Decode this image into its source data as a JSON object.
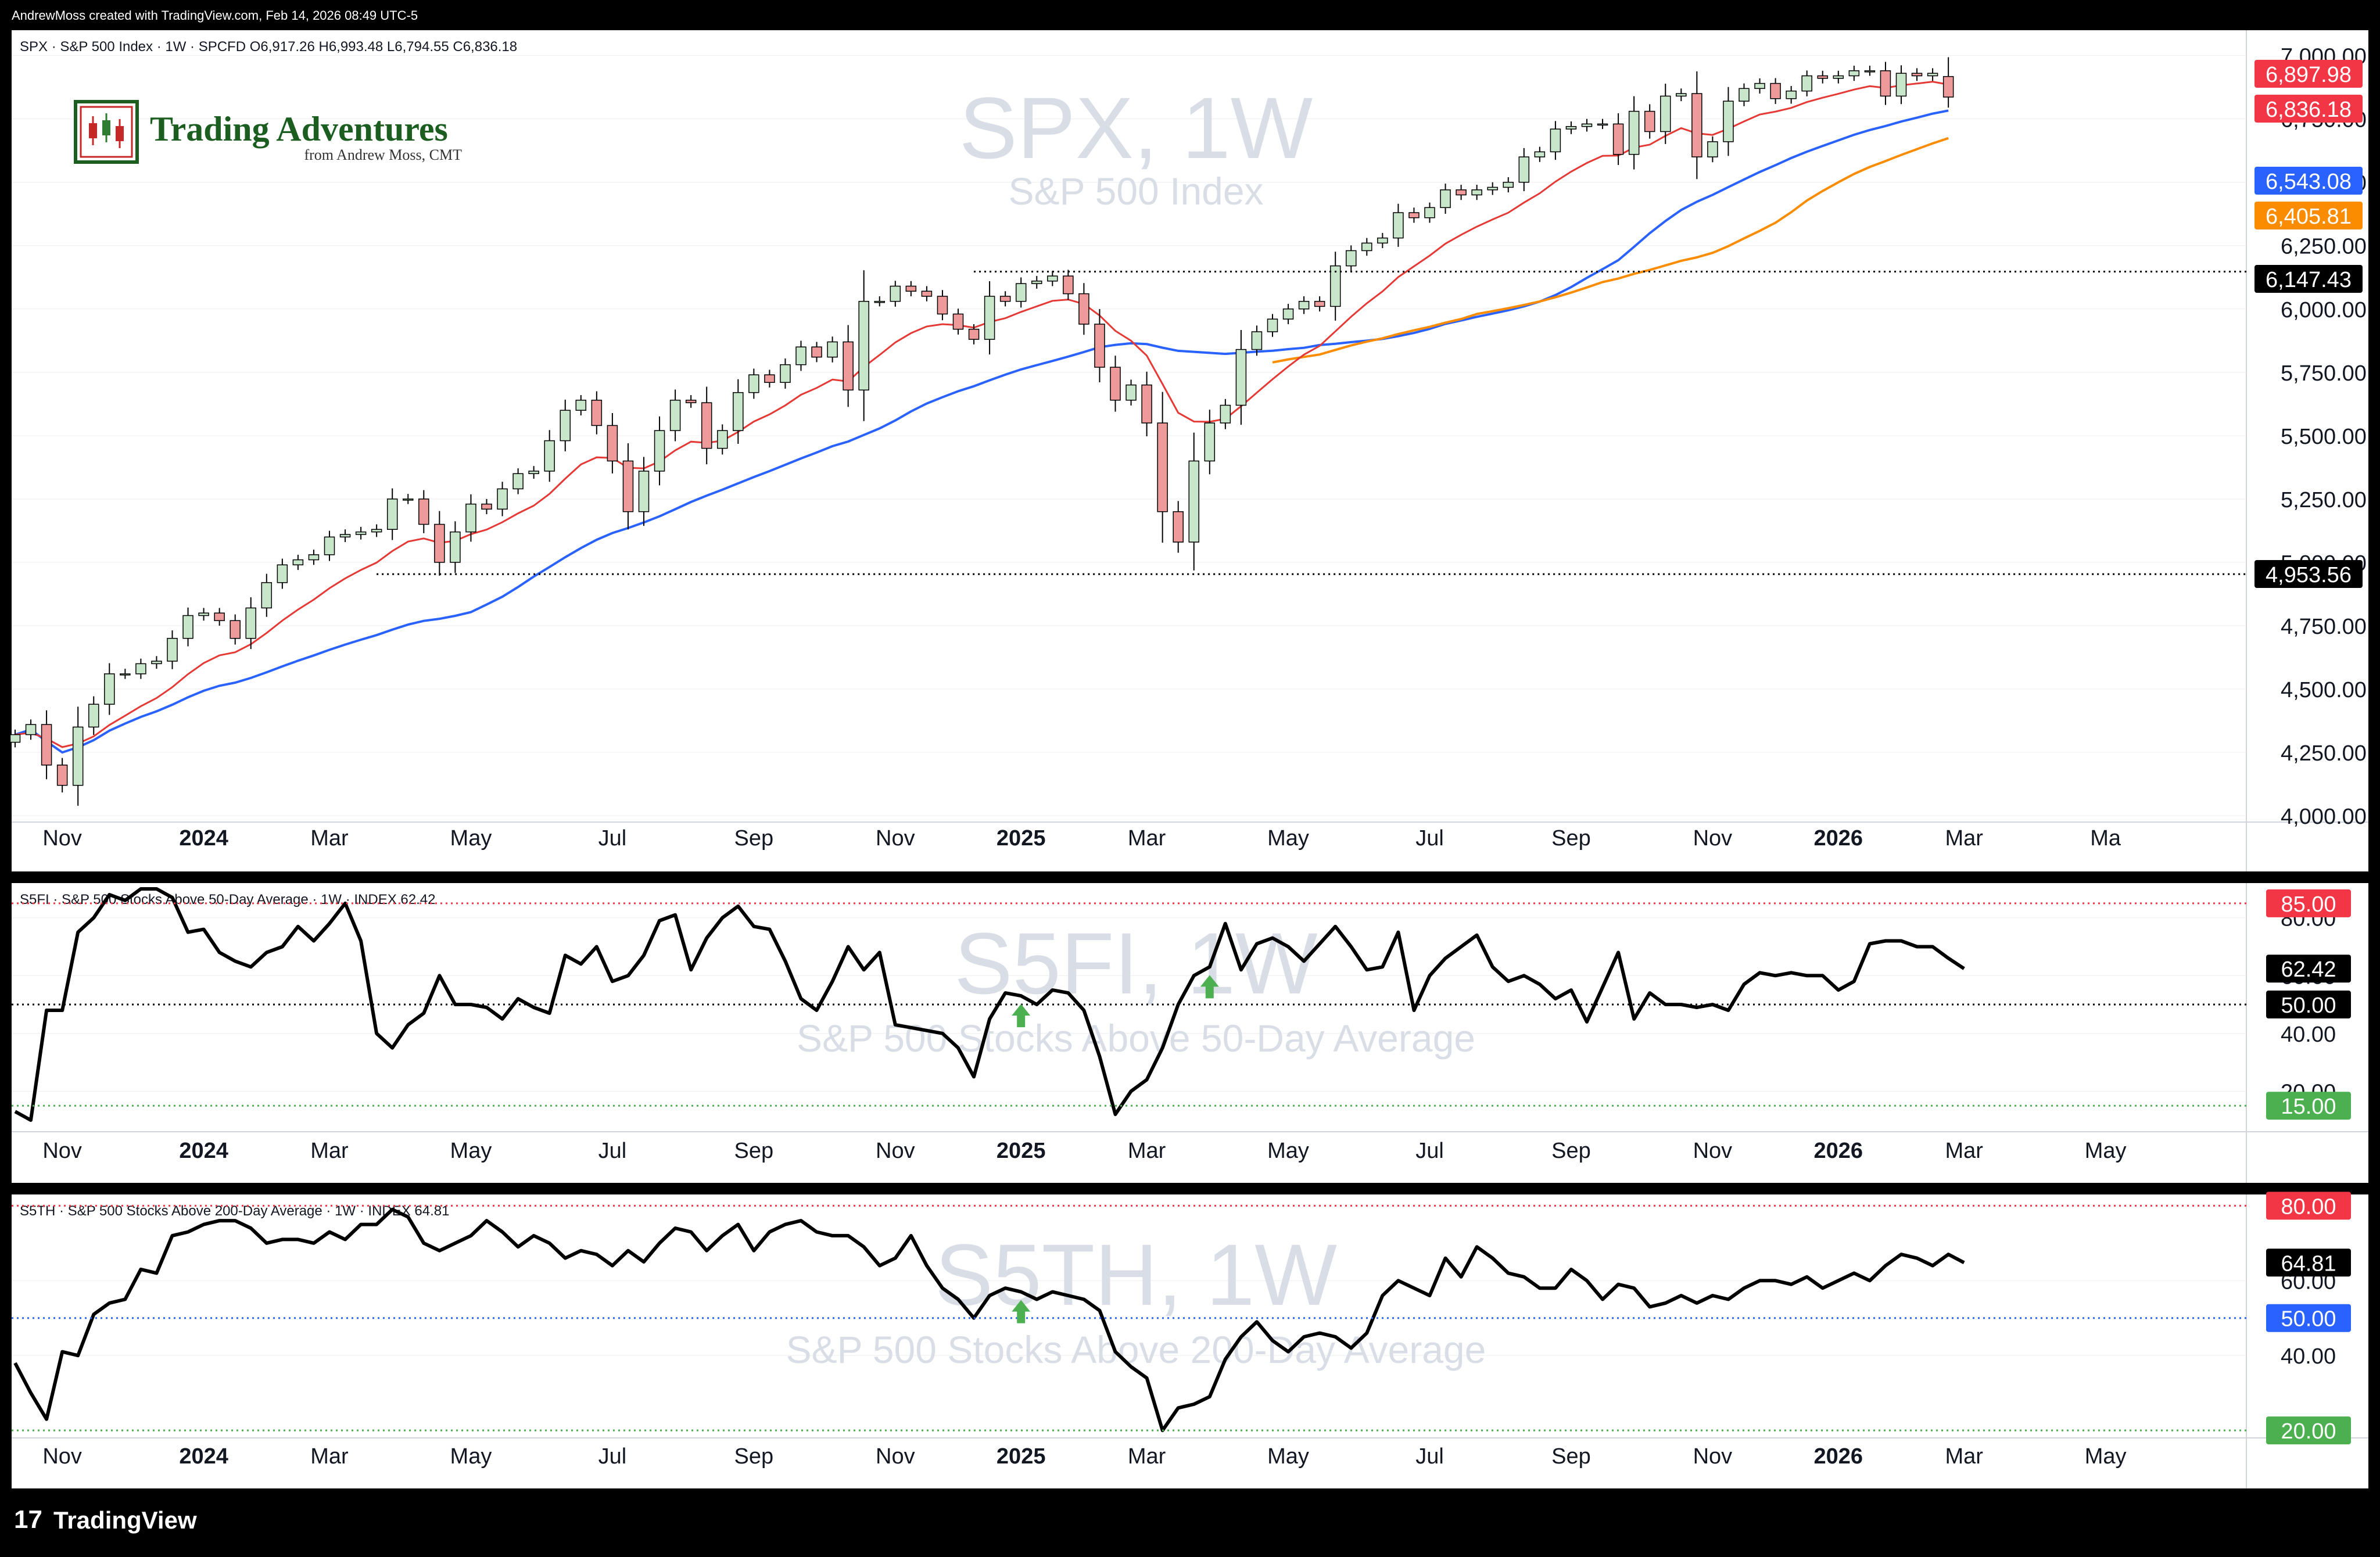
{
  "header": {
    "text": "AndrewMoss created with TradingView.com, Feb 14, 2026 08:49 UTC-5"
  },
  "footer": {
    "brand": "TradingView"
  },
  "logo": {
    "title": "Trading Adventures",
    "subtitle": "from Andrew Moss, CMT"
  },
  "colors": {
    "bull": "#c8e6c9",
    "bear": "#ef9a9a",
    "candle_stroke": "#000000",
    "ema10": "#e53935",
    "sma40": "#fb8c00",
    "sma30": "#2962ff",
    "line": "#000000",
    "grid": "#eeeeee",
    "watermark": "#d9dee6",
    "red": "#f23645",
    "green": "#4caf50",
    "blue": "#2962ff",
    "black": "#000000"
  },
  "chart_data": [
    {
      "type": "candlestick",
      "name": "spx",
      "legend": {
        "symbol": "SPX · S&P 500 Index · 1W · SPCFD",
        "o_label": "O",
        "o": "6,917.26",
        "h_label": "H",
        "h": "6,993.48",
        "l_label": "L",
        "l": "6,794.55",
        "c_label": "C",
        "c": "6,836.18"
      },
      "watermark": "SPX, 1W",
      "watermark_sub": "S&P 500 Index",
      "ylim": [
        3975,
        7100
      ],
      "y_ticks": [
        "4,000.00",
        "4,250.00",
        "4,500.00",
        "4,750.00",
        "5,000.00",
        "5,250.00",
        "5,500.00",
        "5,750.00",
        "6,000.00",
        "6,250.00",
        "6,500.00",
        "6,750.00",
        "7,000.00"
      ],
      "y_tick_values": [
        4000,
        4250,
        4500,
        4750,
        5000,
        5250,
        5500,
        5750,
        6000,
        6250,
        6500,
        6750,
        7000
      ],
      "x_ticks": [
        {
          "label": "Nov",
          "w": 3
        },
        {
          "label": "2024",
          "w": 12,
          "bold": true
        },
        {
          "label": "Mar",
          "w": 20
        },
        {
          "label": "May",
          "w": 29
        },
        {
          "label": "Jul",
          "w": 38
        },
        {
          "label": "Sep",
          "w": 47
        },
        {
          "label": "Nov",
          "w": 56
        },
        {
          "label": "2025",
          "w": 64,
          "bold": true
        },
        {
          "label": "Mar",
          "w": 72
        },
        {
          "label": "May",
          "w": 81
        },
        {
          "label": "Jul",
          "w": 90
        },
        {
          "label": "Sep",
          "w": 99
        },
        {
          "label": "Nov",
          "w": 108
        },
        {
          "label": "2026",
          "w": 116,
          "bold": true
        },
        {
          "label": "Mar",
          "w": 124
        },
        {
          "label": "Ma",
          "w": 133
        }
      ],
      "closes": [
        4320,
        4360,
        4200,
        4120,
        4350,
        4440,
        4560,
        4560,
        4600,
        4610,
        4700,
        4790,
        4800,
        4770,
        4700,
        4820,
        4920,
        4990,
        5010,
        5030,
        5100,
        5110,
        5120,
        5130,
        5250,
        5250,
        5150,
        5000,
        5120,
        5230,
        5210,
        5290,
        5350,
        5360,
        5480,
        5600,
        5640,
        5540,
        5400,
        5200,
        5360,
        5520,
        5640,
        5630,
        5450,
        5520,
        5670,
        5740,
        5710,
        5780,
        5850,
        5810,
        5870,
        5680,
        6030,
        6030,
        6090,
        6070,
        6050,
        5980,
        5920,
        5880,
        6050,
        6030,
        6100,
        6110,
        6130,
        6060,
        5940,
        5770,
        5640,
        5700,
        5550,
        5200,
        5080,
        5400,
        5550,
        5620,
        5840,
        5910,
        5960,
        6000,
        6030,
        6010,
        6170,
        6230,
        6260,
        6280,
        6380,
        6360,
        6400,
        6470,
        6450,
        6470,
        6480,
        6500,
        6600,
        6620,
        6710,
        6720,
        6730,
        6730,
        6610,
        6780,
        6700,
        6840,
        6850,
        6600,
        6660,
        6820,
        6870,
        6890,
        6830,
        6860,
        6920,
        6910,
        6920,
        6940,
        6940,
        6840,
        6930,
        6920,
        6930,
        6836
      ],
      "series_ohlc_last": {
        "open": 6917.26,
        "high": 6993.48,
        "low": 6794.55,
        "close": 6836.18
      },
      "horizontal_lines": [
        {
          "value": 6147.43,
          "label": "6,147.43",
          "color": "#000000",
          "from_w": 61
        },
        {
          "value": 4953.56,
          "label": "4,953.56",
          "color": "#000000",
          "from_w": 23
        }
      ],
      "price_labels": [
        {
          "label": "6,897.98",
          "color": "#f23645",
          "value": 6897.98
        },
        {
          "label": "6,836.18",
          "color": "#f23645",
          "value": 6836.18
        },
        {
          "label": "6,543.08",
          "color": "#2962ff",
          "value": 6543.08
        },
        {
          "label": "6,405.81",
          "color": "#fb8c00",
          "value": 6405.81
        },
        {
          "label": "6,147.43",
          "color": "#000000",
          "value": 6147.43
        },
        {
          "label": "4,953.56",
          "color": "#000000",
          "value": 4953.56
        }
      ]
    },
    {
      "type": "line",
      "name": "s5fi",
      "legend": {
        "symbol": "S5FI · S&P 500 Stocks Above 50-Day Average · 1W · INDEX",
        "value": "62.42"
      },
      "watermark": "S5FI, 1W",
      "watermark_sub": "S&P 500 Stocks Above 50-Day Average",
      "ylim": [
        6,
        92
      ],
      "y_ticks": [
        "20.00",
        "40.00",
        "60.00",
        "80.00"
      ],
      "y_tick_values": [
        20,
        40,
        60,
        80
      ],
      "x_ticks": [
        {
          "label": "Nov",
          "w": 3
        },
        {
          "label": "2024",
          "w": 12,
          "bold": true
        },
        {
          "label": "Mar",
          "w": 20
        },
        {
          "label": "May",
          "w": 29
        },
        {
          "label": "Jul",
          "w": 38
        },
        {
          "label": "Sep",
          "w": 47
        },
        {
          "label": "Nov",
          "w": 56
        },
        {
          "label": "2025",
          "w": 64,
          "bold": true
        },
        {
          "label": "Mar",
          "w": 72
        },
        {
          "label": "May",
          "w": 81
        },
        {
          "label": "Jul",
          "w": 90
        },
        {
          "label": "Sep",
          "w": 99
        },
        {
          "label": "Nov",
          "w": 108
        },
        {
          "label": "2026",
          "w": 116,
          "bold": true
        },
        {
          "label": "Mar",
          "w": 124
        },
        {
          "label": "May",
          "w": 133
        }
      ],
      "values": [
        13,
        10,
        48,
        48,
        75,
        80,
        88,
        86,
        90,
        90,
        87,
        75,
        76,
        68,
        65,
        63,
        68,
        70,
        77,
        72,
        78,
        85,
        72,
        40,
        35,
        43,
        47,
        60,
        50,
        50,
        49,
        45,
        52,
        49,
        47,
        67,
        64,
        70,
        58,
        60,
        67,
        79,
        81,
        62,
        73,
        80,
        84,
        77,
        76,
        65,
        52,
        48,
        58,
        70,
        62,
        68,
        43,
        42,
        41,
        40,
        35,
        25,
        45,
        54,
        53,
        50,
        55,
        54,
        48,
        32,
        12,
        20,
        24,
        35,
        50,
        60,
        63,
        78,
        62,
        71,
        73,
        70,
        65,
        71,
        77,
        70,
        62,
        63,
        75,
        48,
        60,
        66,
        70,
        74,
        63,
        58,
        60,
        57,
        52,
        55,
        44,
        56,
        68,
        45,
        54,
        50,
        50,
        49,
        50,
        48,
        57,
        61,
        60,
        61,
        60,
        60,
        55,
        58,
        71,
        72,
        72,
        70,
        70,
        66,
        62.42
      ],
      "horizontal_lines": [
        {
          "value": 85,
          "label": "85.00",
          "color": "#f23645"
        },
        {
          "value": 50,
          "label": "50.00",
          "color": "#000000"
        },
        {
          "value": 15,
          "label": "15.00",
          "color": "#4caf50"
        }
      ],
      "last_label": {
        "label": "62.42",
        "color": "#000000",
        "value": 62.42
      },
      "arrows_w": [
        64,
        76
      ]
    },
    {
      "type": "line",
      "name": "s5th",
      "legend": {
        "symbol": "S5TH · S&P 500 Stocks Above 200-Day Average · 1W · INDEX",
        "value": "64.81"
      },
      "watermark": "S5TH, 1W",
      "watermark_sub": "S&P 500 Stocks Above 200-Day Average",
      "ylim": [
        18,
        83
      ],
      "y_ticks": [
        "40.00",
        "60.00"
      ],
      "y_tick_values": [
        40,
        60
      ],
      "x_ticks": [
        {
          "label": "Nov",
          "w": 3
        },
        {
          "label": "2024",
          "w": 12,
          "bold": true
        },
        {
          "label": "Mar",
          "w": 20
        },
        {
          "label": "May",
          "w": 29
        },
        {
          "label": "Jul",
          "w": 38
        },
        {
          "label": "Sep",
          "w": 47
        },
        {
          "label": "Nov",
          "w": 56
        },
        {
          "label": "2025",
          "w": 64,
          "bold": true
        },
        {
          "label": "Mar",
          "w": 72
        },
        {
          "label": "May",
          "w": 81
        },
        {
          "label": "Jul",
          "w": 90
        },
        {
          "label": "Sep",
          "w": 99
        },
        {
          "label": "Nov",
          "w": 108
        },
        {
          "label": "2026",
          "w": 116,
          "bold": true
        },
        {
          "label": "Mar",
          "w": 124
        },
        {
          "label": "May",
          "w": 133
        }
      ],
      "values": [
        38,
        30,
        23,
        41,
        40,
        51,
        54,
        55,
        63,
        62,
        72,
        73,
        75,
        76,
        76,
        74,
        70,
        71,
        71,
        70,
        73,
        71,
        75,
        75,
        79,
        77,
        70,
        68,
        70,
        72,
        76,
        73,
        69,
        72,
        70,
        66,
        68,
        67,
        64,
        68,
        65,
        70,
        74,
        73,
        68,
        72,
        75,
        68,
        73,
        75,
        76,
        73,
        72,
        72,
        69,
        64,
        66,
        72,
        64,
        58,
        55,
        50,
        56,
        58,
        57,
        55,
        57,
        56,
        55,
        52,
        41,
        37,
        34,
        20,
        26,
        27,
        29,
        39,
        45,
        49,
        44,
        41,
        45,
        46,
        45,
        42,
        46,
        56,
        60,
        58,
        56,
        66,
        61,
        69,
        66,
        62,
        61,
        58,
        58,
        63,
        60,
        55,
        59,
        58,
        53,
        54,
        56,
        54,
        56,
        55,
        58,
        60,
        60,
        59,
        61,
        58,
        60,
        62,
        60,
        64,
        67,
        66,
        64,
        67,
        64.81
      ],
      "horizontal_lines": [
        {
          "value": 80,
          "label": "80.00",
          "color": "#f23645"
        },
        {
          "value": 50,
          "label": "50.00",
          "color": "#2962ff"
        },
        {
          "value": 20,
          "label": "20.00",
          "color": "#4caf50"
        }
      ],
      "last_label": {
        "label": "64.81",
        "color": "#000000",
        "value": 64.81
      },
      "arrows_w": [
        64
      ]
    }
  ]
}
